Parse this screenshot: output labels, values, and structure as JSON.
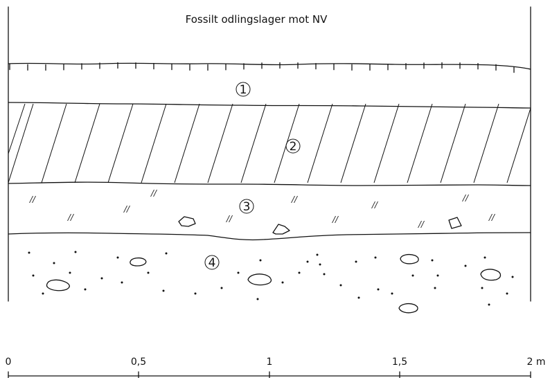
{
  "title": "Fossilt odlingslager mot NV",
  "layers": [
    {
      "label": "1"
    },
    {
      "label": "2"
    },
    {
      "label": "3"
    },
    {
      "label": "4"
    }
  ],
  "scale": {
    "ticks": [
      "0",
      "0,5",
      "1",
      "1,5",
      "2 m"
    ]
  },
  "layer3_mark": "//"
}
